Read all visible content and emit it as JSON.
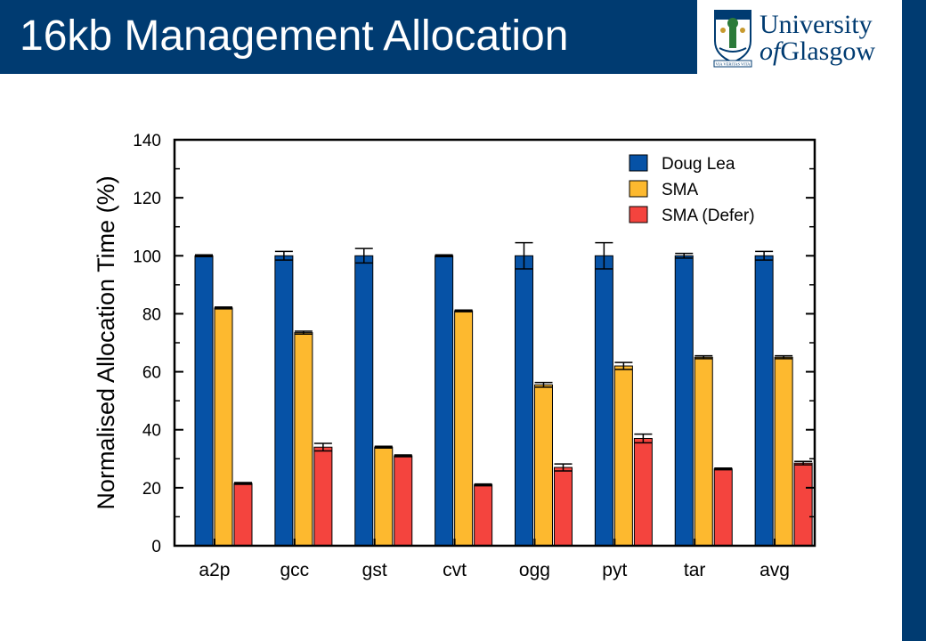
{
  "slide": {
    "title": "16kb Management Allocation"
  },
  "logo": {
    "line1": "University",
    "line2_of": "of",
    "line2_rest": "Glasgow",
    "motto": "VIA VERITAS VITA"
  },
  "colors": {
    "header": "#003b71",
    "doug_lea": "#0652a6",
    "sma": "#fdb92f",
    "sma_defer": "#f4443e"
  },
  "chart_data": {
    "type": "bar",
    "ylabel": "Normalised Allocation Time (%)",
    "ylim": [
      0,
      140
    ],
    "yticks": [
      0,
      20,
      40,
      60,
      80,
      100,
      120,
      140
    ],
    "ytick_labels": [
      "0",
      "20",
      "40",
      "60",
      "80",
      "100",
      "120",
      "140"
    ],
    "categories": [
      "a2p",
      "gcc",
      "gst",
      "cvt",
      "ogg",
      "pyt",
      "tar",
      "avg"
    ],
    "legend_position": "top-right",
    "series": [
      {
        "name": "Doug Lea",
        "color": "#0652a6",
        "values": [
          100,
          100,
          100,
          100,
          100,
          100,
          100,
          100
        ],
        "errors": [
          0.3,
          1.5,
          2.5,
          0.3,
          4.5,
          4.5,
          0.8,
          1.5
        ]
      },
      {
        "name": "SMA",
        "color": "#fdb92f",
        "values": [
          82,
          73.5,
          34,
          81,
          55.5,
          62,
          65,
          65
        ],
        "errors": [
          0.3,
          0.5,
          0.3,
          0.3,
          0.8,
          1.2,
          0.5,
          0.5
        ]
      },
      {
        "name": "SMA (Defer)",
        "color": "#f4443e",
        "values": [
          21.5,
          34,
          31,
          21,
          27,
          37,
          26.5,
          28.5
        ],
        "errors": [
          0.3,
          1.3,
          0.3,
          0.3,
          1.2,
          1.5,
          0.3,
          0.6
        ]
      }
    ]
  }
}
